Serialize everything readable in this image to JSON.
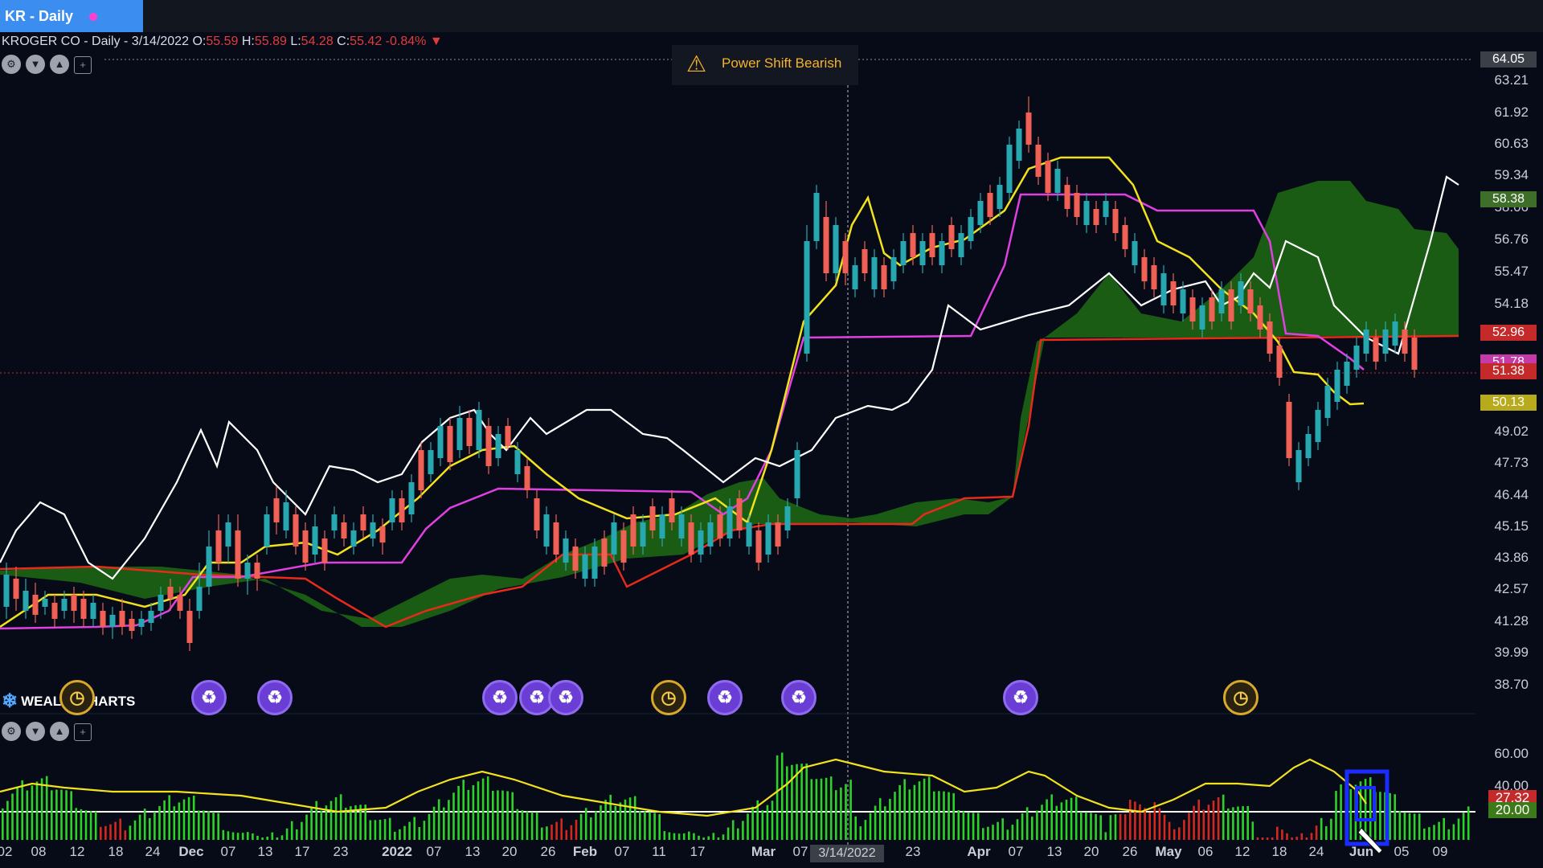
{
  "tab": {
    "label": "KR - Daily"
  },
  "header": {
    "name": "KROGER CO",
    "interval": "Daily",
    "date": "3/14/2022",
    "open_label": "O:",
    "open": "55.59",
    "high_label": "H:",
    "high": "55.89",
    "low_label": "L:",
    "low": "54.28",
    "close_label": "C:",
    "close": "55.42",
    "change": "-0.84%"
  },
  "alert": {
    "text": "Power Shift Bearish",
    "icon": "warning-icon"
  },
  "logo": {
    "text": "WEALTHCHARTS"
  },
  "price_axis": [
    "64.05",
    "63.21",
    "61.92",
    "60.63",
    "59.34",
    "58.06",
    "56.76",
    "55.47",
    "54.18",
    "52.96",
    "51.78",
    "51.38",
    "50.13",
    "49.02",
    "47.73",
    "46.44",
    "45.15",
    "43.86",
    "42.57",
    "41.28",
    "39.99",
    "38.70"
  ],
  "price_tags": [
    {
      "value": "64.05",
      "color": "#3a3f48"
    },
    {
      "value": "58.38",
      "color": "#3d6e2a"
    },
    {
      "value": "52.96",
      "color": "#c42a2a"
    },
    {
      "value": "51.78",
      "color": "#c43aa8"
    },
    {
      "value": "51.38",
      "color": "#c42a2a"
    },
    {
      "value": "50.13",
      "color": "#b7aa1c"
    }
  ],
  "indicator_axis": [
    "60.00",
    "40.00",
    "27.32",
    "20.00"
  ],
  "date_axis": [
    "02",
    "08",
    "12",
    "18",
    "24",
    "Dec",
    "07",
    "13",
    "17",
    "23",
    "2022",
    "07",
    "13",
    "20",
    "26",
    "Feb",
    "07",
    "11",
    "17",
    "Mar",
    "07",
    "23",
    "Apr",
    "07",
    "13",
    "20",
    "26",
    "May",
    "06",
    "12",
    "18",
    "24",
    "Jun",
    "05",
    "09"
  ],
  "crosshair_date": "3/14/2022",
  "colors": {
    "bull": "#27a8b0",
    "bear": "#f06055",
    "conversion": "#f2e21c",
    "base": "#e040e0",
    "lagging": "#ffffff",
    "span_b": "#e82a1a",
    "cloud": "#1f6b14",
    "volume_up": "#2ed12a",
    "volume_down": "#d2281e"
  }
}
